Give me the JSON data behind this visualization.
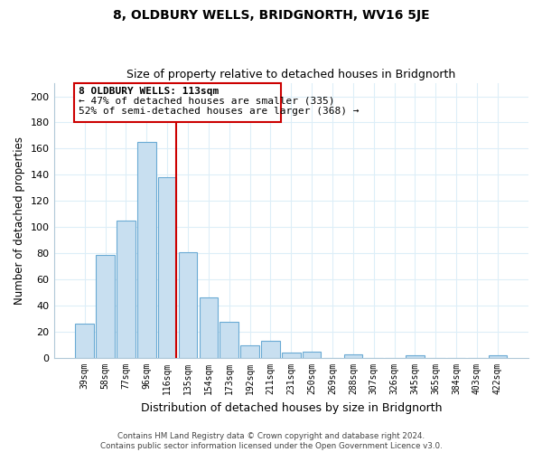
{
  "title": "8, OLDBURY WELLS, BRIDGNORTH, WV16 5JE",
  "subtitle": "Size of property relative to detached houses in Bridgnorth",
  "xlabel": "Distribution of detached houses by size in Bridgnorth",
  "ylabel": "Number of detached properties",
  "bar_labels": [
    "39sqm",
    "58sqm",
    "77sqm",
    "96sqm",
    "116sqm",
    "135sqm",
    "154sqm",
    "173sqm",
    "192sqm",
    "211sqm",
    "231sqm",
    "250sqm",
    "269sqm",
    "288sqm",
    "307sqm",
    "326sqm",
    "345sqm",
    "365sqm",
    "384sqm",
    "403sqm",
    "422sqm"
  ],
  "bar_values": [
    26,
    79,
    105,
    165,
    138,
    81,
    46,
    28,
    10,
    13,
    4,
    5,
    0,
    3,
    0,
    0,
    2,
    0,
    0,
    0,
    2
  ],
  "bar_color": "#c8dff0",
  "bar_edge_color": "#6aaad4",
  "vline_color": "#cc0000",
  "ylim": [
    0,
    210
  ],
  "yticks": [
    0,
    20,
    40,
    60,
    80,
    100,
    120,
    140,
    160,
    180,
    200
  ],
  "ann_line1": "8 OLDBURY WELLS: 113sqm",
  "ann_line2": "← 47% of detached houses are smaller (335)",
  "ann_line3": "52% of semi-detached houses are larger (368) →",
  "footer_text": "Contains HM Land Registry data © Crown copyright and database right 2024.\nContains public sector information licensed under the Open Government Licence v3.0.",
  "grid_color": "#ddeef8",
  "background_color": "#ffffff"
}
